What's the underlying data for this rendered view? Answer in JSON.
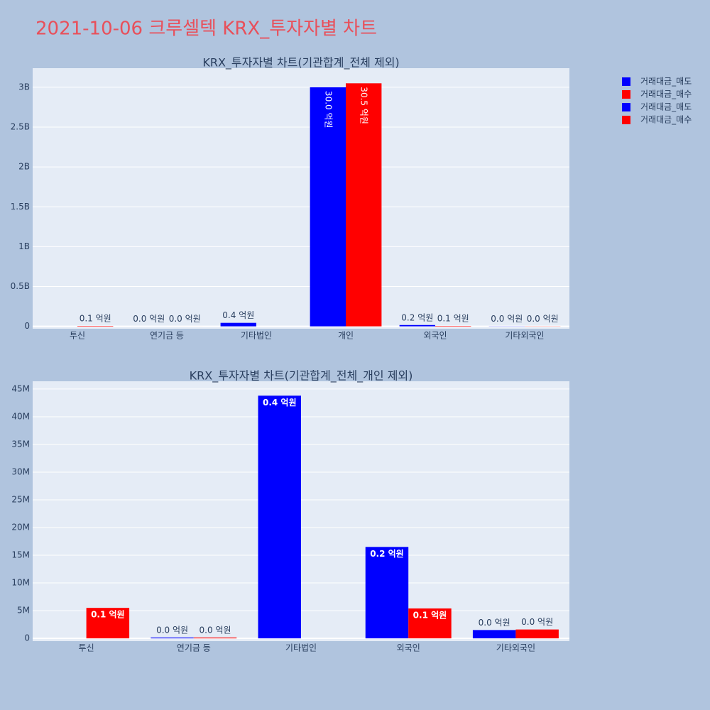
{
  "title": "2021-10-06 크루셀텍 KRX_투자자별 차트",
  "chart_data": [
    {
      "type": "bar",
      "title": "KRX_투자자별 차트(기관합계_전체 제외)",
      "categories": [
        "투신",
        "연기금 등",
        "기타법인",
        "개인",
        "외국인",
        "기타외국인"
      ],
      "series": [
        {
          "name": "거래대금_매도",
          "color": "#0000ff",
          "values": [
            null,
            100000,
            44000000,
            3000000000,
            16500000,
            1500000
          ],
          "value_labels": [
            null,
            "0.0 억원",
            "0.4 억원",
            "30.0 억원",
            "0.2 억원",
            "0.0 억원"
          ]
        },
        {
          "name": "거래대금_매수",
          "color": "#ff0000",
          "values": [
            5500000,
            100000,
            null,
            3050000000,
            5400000,
            1600000
          ],
          "value_labels": [
            "0.1 억원",
            "0.0 억원",
            null,
            "30.5 억원",
            "0.1 억원",
            "0.0 억원"
          ]
        }
      ],
      "ylim": [
        -30000000,
        3240000000
      ],
      "yticks": [
        {
          "value": 0,
          "label": "0"
        },
        {
          "value": 500000000,
          "label": "0.5B"
        },
        {
          "value": 1000000000,
          "label": "1B"
        },
        {
          "value": 1500000000,
          "label": "1.5B"
        },
        {
          "value": 2000000000,
          "label": "2B"
        },
        {
          "value": 2500000000,
          "label": "2.5B"
        },
        {
          "value": 3000000000,
          "label": "3B"
        }
      ],
      "grid": true
    },
    {
      "type": "bar",
      "title": "KRX_투자자별 차트(기관합계_전체_개인 제외)",
      "categories": [
        "투신",
        "연기금 등",
        "기타법인",
        "외국인",
        "기타외국인"
      ],
      "series": [
        {
          "name": "거래대금_매도",
          "color": "#0000ff",
          "values": [
            null,
            150000,
            43800000,
            16500000,
            1500000
          ],
          "value_labels": [
            null,
            "0.0 억원",
            "0.4 억원",
            "0.2 억원",
            "0.0 억원"
          ]
        },
        {
          "name": "거래대금_매수",
          "color": "#ff0000",
          "values": [
            5500000,
            150000,
            null,
            5400000,
            1600000
          ],
          "value_labels": [
            "0.1 억원",
            "0.0 억원",
            null,
            "0.1 억원",
            "0.0 억원"
          ]
        }
      ],
      "ylim": [
        -500000,
        46400000
      ],
      "yticks": [
        {
          "value": 0,
          "label": "0"
        },
        {
          "value": 5000000,
          "label": "5M"
        },
        {
          "value": 10000000,
          "label": "10M"
        },
        {
          "value": 15000000,
          "label": "15M"
        },
        {
          "value": 20000000,
          "label": "20M"
        },
        {
          "value": 25000000,
          "label": "25M"
        },
        {
          "value": 30000000,
          "label": "30M"
        },
        {
          "value": 35000000,
          "label": "35M"
        },
        {
          "value": 40000000,
          "label": "40M"
        },
        {
          "value": 45000000,
          "label": "45M"
        }
      ],
      "grid": true
    }
  ]
}
